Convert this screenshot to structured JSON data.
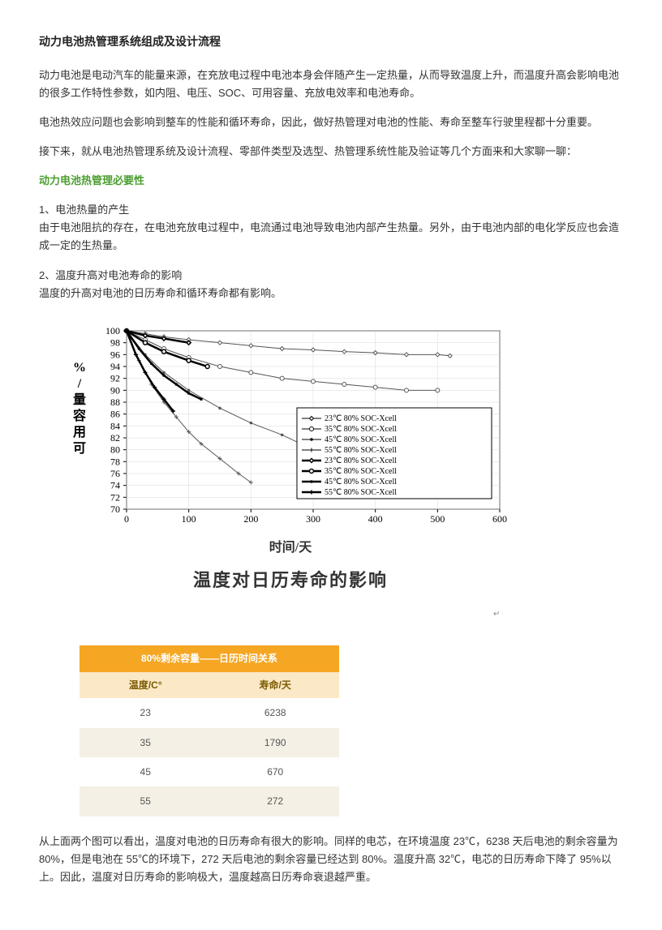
{
  "title": "动力电池热管理系统组成及设计流程",
  "p1": "动力电池是电动汽车的能量来源，在充放电过程中电池本身会伴随产生一定热量，从而导致温度上升，而温度升高会影响电池的很多工作特性参数，如内阻、电压、SOC、可用容量、充放电效率和电池寿命。",
  "p2": "电池热效应问题也会影响到整车的性能和循环寿命，因此，做好热管理对电池的性能、寿命至整车行驶里程都十分重要。",
  "p3": "接下来，就从电池热管理系统及设计流程、零部件类型及选型、热管理系统性能及验证等几个方面来和大家聊一聊：",
  "green_h1": "动力电池热管理必要性",
  "sec1_a": "1、电池热量的产生",
  "sec1_b": "由于电池阻抗的存在，在电池充放电过程中，电流通过电池导致电池内部产生热量。另外，由于电池内部的电化学反应也会造成一定的生热量。",
  "sec2_a": "2、温度升高对电池寿命的影响",
  "sec2_b": "温度的升高对电池的日历寿命和循环寿命都有影响。",
  "chart": {
    "type": "line",
    "xlabel": "时间/天",
    "ylabel_lines": [
      "%",
      "/",
      "量",
      "容",
      "用",
      "可"
    ],
    "title_cn": "温度对日历寿命的影响",
    "xlim": [
      0,
      600
    ],
    "ylim": [
      70,
      100
    ],
    "xticks": [
      0,
      100,
      200,
      300,
      400,
      500,
      600
    ],
    "yticks": [
      70,
      72,
      74,
      76,
      78,
      80,
      82,
      84,
      86,
      88,
      90,
      92,
      94,
      96,
      98,
      100
    ],
    "grid_color": "#d8d8d8",
    "axis_color": "#000000",
    "background": "#ffffff",
    "tick_fontsize": 12,
    "label_fontsize": 16,
    "title_fontsize": 22,
    "legend_items": [
      "23℃ 80% SOC-Xcell",
      "35℃ 80% SOC-Xcell",
      "45℃ 80% SOC-Xcell",
      "55℃ 80% SOC-Xcell",
      "23℃ 80% SOC-Xcell",
      "35℃ 80% SOC-Xcell",
      "45℃ 80% SOC-Xcell",
      "55℃ 80% SOC-Xcell"
    ],
    "legend_line_widths": [
      1,
      1,
      1,
      1,
      2.5,
      2.5,
      2.5,
      2.5
    ],
    "legend_markers": [
      "diamond",
      "circle",
      "dot",
      "plus",
      "diamond",
      "circle",
      "dot",
      "plus"
    ],
    "series": [
      {
        "name": "23C-thin",
        "color": "#555",
        "width": 1,
        "marker": "diamond",
        "data": [
          [
            0,
            100
          ],
          [
            30,
            99.5
          ],
          [
            60,
            99
          ],
          [
            100,
            98.5
          ],
          [
            150,
            98
          ],
          [
            200,
            97.5
          ],
          [
            250,
            97
          ],
          [
            300,
            96.8
          ],
          [
            350,
            96.5
          ],
          [
            400,
            96.3
          ],
          [
            450,
            96
          ],
          [
            500,
            96
          ],
          [
            520,
            95.8
          ]
        ]
      },
      {
        "name": "35C-thin",
        "color": "#555",
        "width": 1,
        "marker": "circle",
        "data": [
          [
            0,
            100
          ],
          [
            30,
            98.5
          ],
          [
            60,
            97
          ],
          [
            100,
            95.5
          ],
          [
            150,
            94
          ],
          [
            200,
            93
          ],
          [
            250,
            92
          ],
          [
            300,
            91.5
          ],
          [
            350,
            91
          ],
          [
            400,
            90.5
          ],
          [
            450,
            90
          ],
          [
            500,
            90
          ]
        ]
      },
      {
        "name": "45C-thin",
        "color": "#555",
        "width": 1,
        "marker": "dot",
        "data": [
          [
            0,
            100
          ],
          [
            30,
            96
          ],
          [
            60,
            93
          ],
          [
            100,
            90
          ],
          [
            150,
            87
          ],
          [
            200,
            84.5
          ],
          [
            250,
            82.5
          ],
          [
            280,
            81
          ]
        ]
      },
      {
        "name": "55C-thin",
        "color": "#555",
        "width": 1,
        "marker": "plus",
        "data": [
          [
            0,
            100
          ],
          [
            20,
            95
          ],
          [
            40,
            91
          ],
          [
            60,
            88
          ],
          [
            80,
            85.5
          ],
          [
            100,
            83
          ],
          [
            120,
            81
          ],
          [
            150,
            78.5
          ],
          [
            180,
            76
          ],
          [
            200,
            74.5
          ]
        ]
      },
      {
        "name": "23C-thick",
        "color": "#000",
        "width": 2.5,
        "marker": "diamond",
        "data": [
          [
            0,
            100
          ],
          [
            30,
            99.2
          ],
          [
            60,
            98.7
          ],
          [
            100,
            98
          ]
        ]
      },
      {
        "name": "35C-thick",
        "color": "#000",
        "width": 2.5,
        "marker": "circle",
        "data": [
          [
            0,
            100
          ],
          [
            30,
            98
          ],
          [
            60,
            96.5
          ],
          [
            100,
            95
          ],
          [
            130,
            94
          ]
        ]
      },
      {
        "name": "45C-thick",
        "color": "#000",
        "width": 2.5,
        "marker": "dot",
        "data": [
          [
            0,
            100
          ],
          [
            20,
            97
          ],
          [
            40,
            94.5
          ],
          [
            60,
            92.5
          ],
          [
            80,
            91
          ],
          [
            100,
            89.5
          ],
          [
            120,
            88.5
          ]
        ]
      },
      {
        "name": "55C-thick",
        "color": "#000",
        "width": 2.5,
        "marker": "plus",
        "data": [
          [
            0,
            100
          ],
          [
            15,
            96
          ],
          [
            30,
            93
          ],
          [
            45,
            90.5
          ],
          [
            60,
            88.5
          ],
          [
            75,
            86.5
          ]
        ]
      }
    ]
  },
  "table": {
    "header": "80%剩余容量——日历时间关系",
    "cols": [
      "温度/C°",
      "寿命/天"
    ],
    "rows": [
      [
        "23",
        "6238"
      ],
      [
        "35",
        "1790"
      ],
      [
        "45",
        "670"
      ],
      [
        "55",
        "272"
      ]
    ],
    "header_bg": "#f5a623",
    "header_fg": "#ffffff",
    "subheader_bg": "#fbe8c6",
    "row_alt_bg": "#f5f0e6"
  },
  "p_end": "从上面两个图可以看出，温度对电池的日历寿命有很大的影响。同样的电芯，在环境温度 23℃，6238 天后电池的剩余容量为 80%，但是电池在 55℃的环境下，272 天后电池的剩余容量已经达到 80%。温度升高 32℃，电芯的日历寿命下降了 95%以上。因此，温度对日历寿命的影响极大，温度越高日历寿命衰退越严重。"
}
